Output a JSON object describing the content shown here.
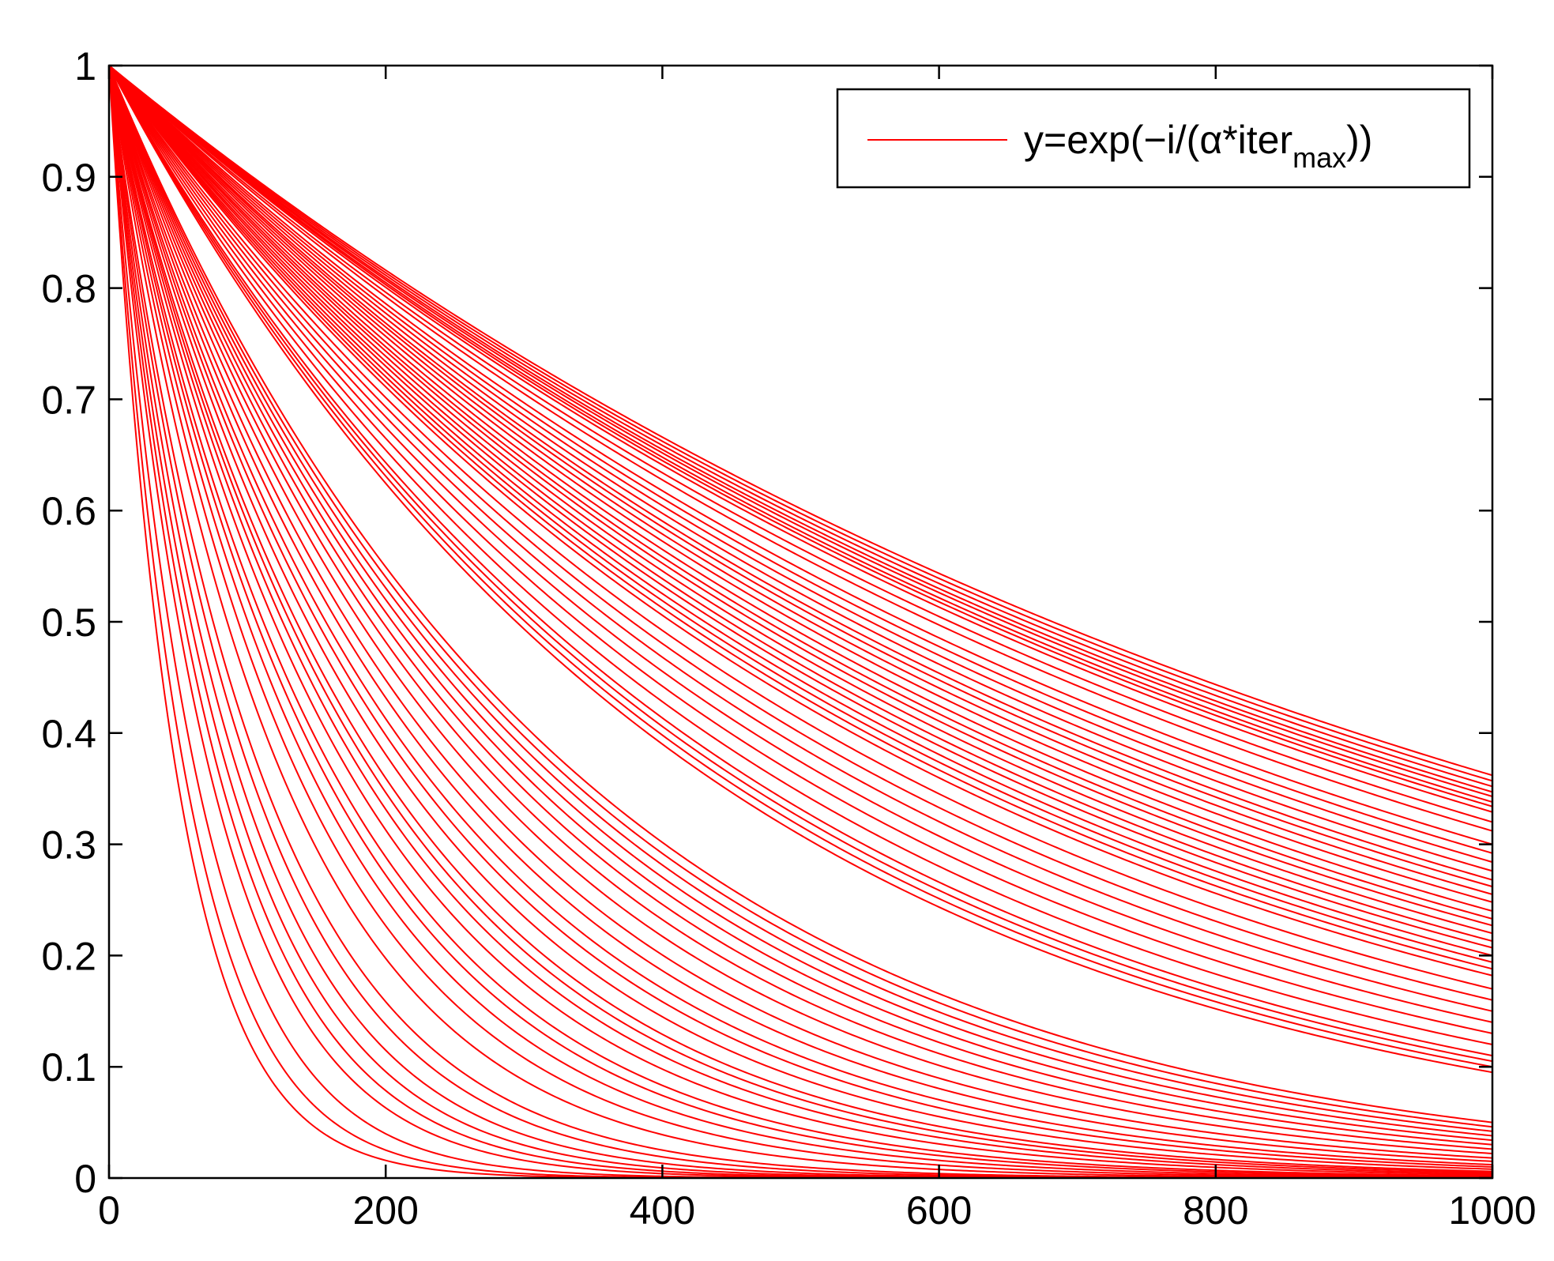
{
  "chart_data": {
    "type": "line",
    "x_range": [
      0,
      1000
    ],
    "ylim": [
      0,
      1
    ],
    "x_ticks": [
      "0",
      "200",
      "400",
      "600",
      "800",
      "1000"
    ],
    "y_ticks": [
      "0",
      "0.1",
      "0.2",
      "0.3",
      "0.4",
      "0.5",
      "0.6",
      "0.7",
      "0.8",
      "0.9",
      "1"
    ],
    "grid": false,
    "line_color": "#ff0000",
    "legend": {
      "placement": "top-right",
      "label": "y=exp(−i/(α*iter",
      "label_sub": "max",
      "label_end": "))"
    },
    "series_end_values": [
      0.362,
      0.357,
      0.352,
      0.347,
      0.343,
      0.338,
      0.334,
      0.329,
      0.32,
      0.312,
      0.3,
      0.292,
      0.284,
      0.276,
      0.268,
      0.262,
      0.255,
      0.248,
      0.24,
      0.233,
      0.227,
      0.22,
      0.213,
      0.207,
      0.2,
      0.194,
      0.188,
      0.182,
      0.17,
      0.16,
      0.15,
      0.14,
      0.13,
      0.12,
      0.11,
      0.105,
      0.1,
      0.095,
      0.05,
      0.046,
      0.042,
      0.038,
      0.034,
      0.03,
      0.026,
      0.022,
      0.018,
      0.015,
      0.012,
      0.01,
      0.008,
      0.006,
      0.005,
      0.004,
      0.003,
      0.002,
      0.0015,
      0.001,
      0.0006,
      0.0003,
      0.0001,
      5e-05,
      2e-05,
      8e-06,
      3e-06,
      1e-06,
      1e-07,
      1e-08,
      1e-09
    ]
  }
}
